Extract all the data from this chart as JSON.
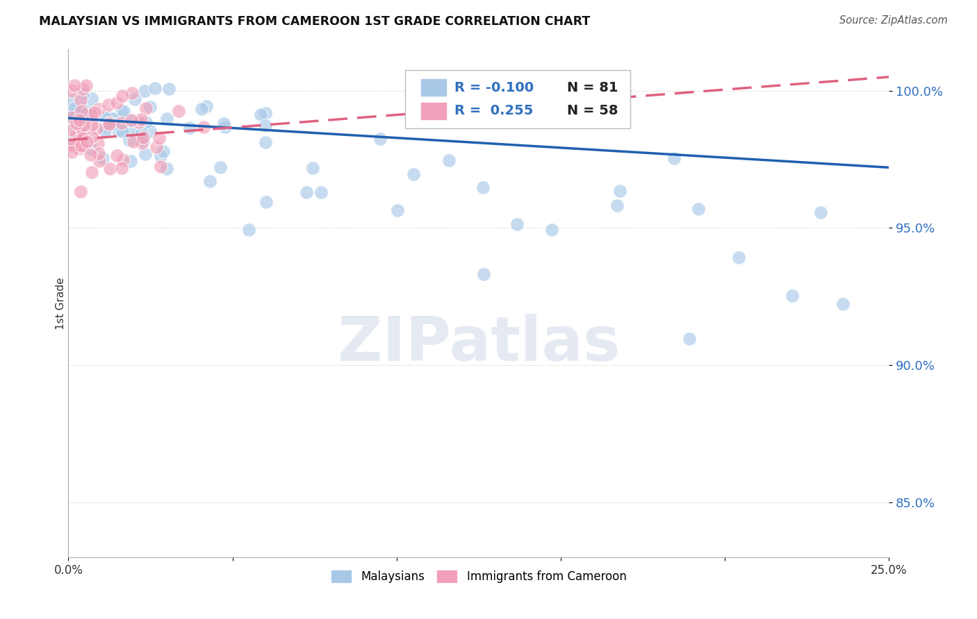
{
  "title": "MALAYSIAN VS IMMIGRANTS FROM CAMEROON 1ST GRADE CORRELATION CHART",
  "source": "Source: ZipAtlas.com",
  "ylabel": "1st Grade",
  "y_ticks": [
    0.85,
    0.9,
    0.95,
    1.0
  ],
  "y_tick_labels": [
    "85.0%",
    "90.0%",
    "95.0%",
    "100.0%"
  ],
  "xlim": [
    0.0,
    0.25
  ],
  "ylim": [
    0.83,
    1.015
  ],
  "x_tick_positions": [
    0.0,
    0.05,
    0.1,
    0.15,
    0.2,
    0.25
  ],
  "x_tick_labels": [
    "0.0%",
    "",
    "",
    "",
    "",
    "25.0%"
  ],
  "legend_r_blue": "-0.100",
  "legend_n_blue": "81",
  "legend_r_pink": "0.255",
  "legend_n_pink": "58",
  "blue_scatter_color": "#a8c8e8",
  "pink_scatter_color": "#f0a0b8",
  "blue_line_color": "#2060b0",
  "pink_line_color": "#e06080",
  "watermark": "ZIPatlas",
  "blue_trend_x0": 0.0,
  "blue_trend_y0": 0.99,
  "blue_trend_x1": 0.25,
  "blue_trend_y1": 0.972,
  "pink_trend_x0": 0.0,
  "pink_trend_y0": 0.982,
  "pink_trend_x1": 0.25,
  "pink_trend_y1": 1.005
}
